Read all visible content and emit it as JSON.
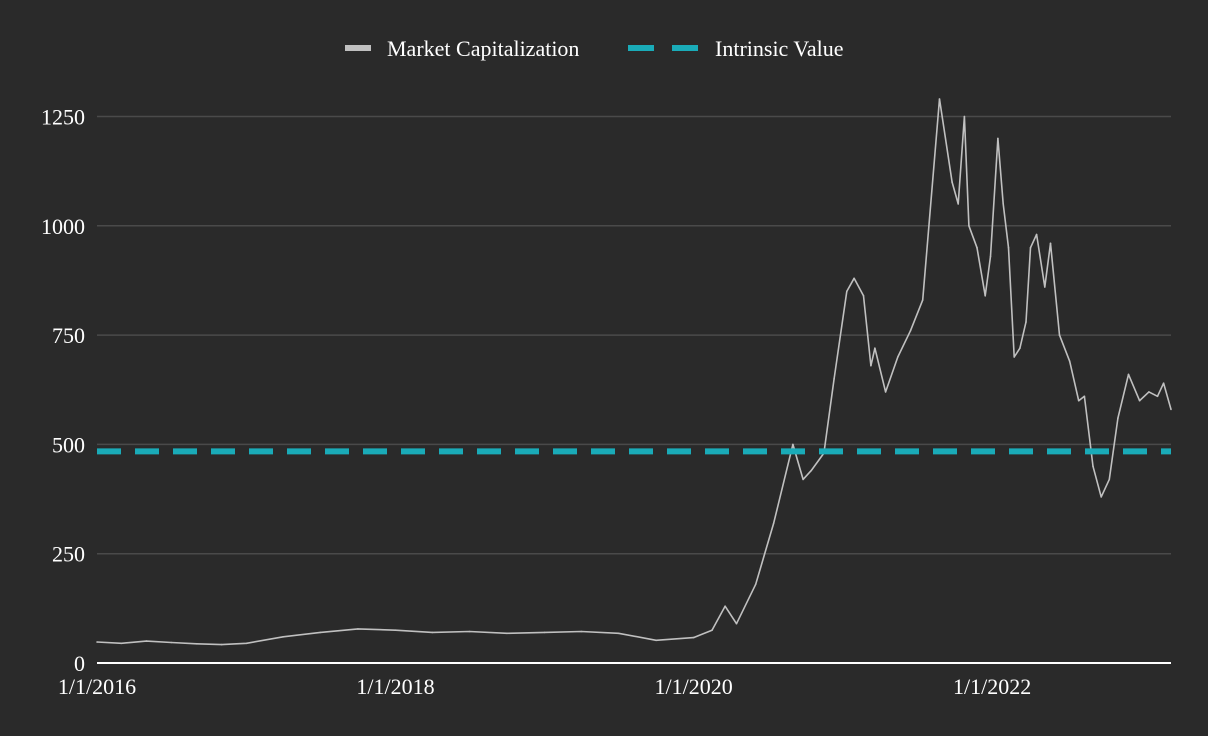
{
  "chart_data": {
    "type": "line",
    "title": "",
    "xlabel": "",
    "ylabel": "",
    "xlim": [
      "2016-01-01",
      "2023-03-15"
    ],
    "ylim": [
      0,
      1350
    ],
    "grid": true,
    "legend_position": "top-center",
    "x_ticks": [
      "1/1/2016",
      "1/1/2018",
      "1/1/2020",
      "1/1/2022"
    ],
    "y_ticks": [
      "0",
      "250",
      "500",
      "750",
      "1000",
      "1250"
    ],
    "series": [
      {
        "name": "Market Capitalization",
        "style": "solid",
        "color": "#c0c0c0",
        "x": [
          "2016-01-01",
          "2016-03-01",
          "2016-05-01",
          "2016-07-01",
          "2016-09-01",
          "2016-11-01",
          "2017-01-01",
          "2017-04-01",
          "2017-07-01",
          "2017-10-01",
          "2018-01-01",
          "2018-04-01",
          "2018-07-01",
          "2018-10-01",
          "2019-01-01",
          "2019-04-01",
          "2019-07-01",
          "2019-10-01",
          "2020-01-01",
          "2020-02-15",
          "2020-03-18",
          "2020-04-15",
          "2020-06-01",
          "2020-07-15",
          "2020-08-31",
          "2020-09-25",
          "2020-10-15",
          "2020-11-15",
          "2020-12-10",
          "2021-01-10",
          "2021-01-28",
          "2021-02-20",
          "2021-03-10",
          "2021-03-20",
          "2021-04-15",
          "2021-05-15",
          "2021-06-15",
          "2021-07-15",
          "2021-08-25",
          "2021-09-25",
          "2021-10-10",
          "2021-10-25",
          "2021-11-05",
          "2021-11-25",
          "2021-12-15",
          "2021-12-28",
          "2022-01-15",
          "2022-01-28",
          "2022-02-10",
          "2022-02-24",
          "2022-03-10",
          "2022-03-25",
          "2022-04-05",
          "2022-04-20",
          "2022-05-10",
          "2022-05-24",
          "2022-06-15",
          "2022-07-10",
          "2022-08-01",
          "2022-08-15",
          "2022-09-05",
          "2022-09-25",
          "2022-10-15",
          "2022-11-05",
          "2022-12-01",
          "2022-12-28",
          "2023-01-20",
          "2023-02-10",
          "2023-02-25",
          "2023-03-15"
        ],
        "values": [
          48,
          45,
          50,
          47,
          44,
          42,
          45,
          60,
          70,
          78,
          75,
          70,
          72,
          68,
          70,
          72,
          68,
          52,
          58,
          75,
          130,
          90,
          180,
          320,
          500,
          420,
          440,
          480,
          650,
          850,
          880,
          840,
          680,
          720,
          620,
          700,
          760,
          830,
          1290,
          1100,
          1050,
          1250,
          1000,
          950,
          840,
          930,
          1200,
          1050,
          950,
          700,
          720,
          780,
          950,
          980,
          860,
          960,
          750,
          690,
          600,
          610,
          450,
          380,
          420,
          560,
          660,
          600,
          620,
          610,
          640,
          580
        ]
      },
      {
        "name": "Intrinsic Value",
        "style": "dashed",
        "color": "#1aabb8",
        "x": [
          "2016-01-01",
          "2023-03-15"
        ],
        "values": [
          484,
          484
        ]
      }
    ]
  }
}
